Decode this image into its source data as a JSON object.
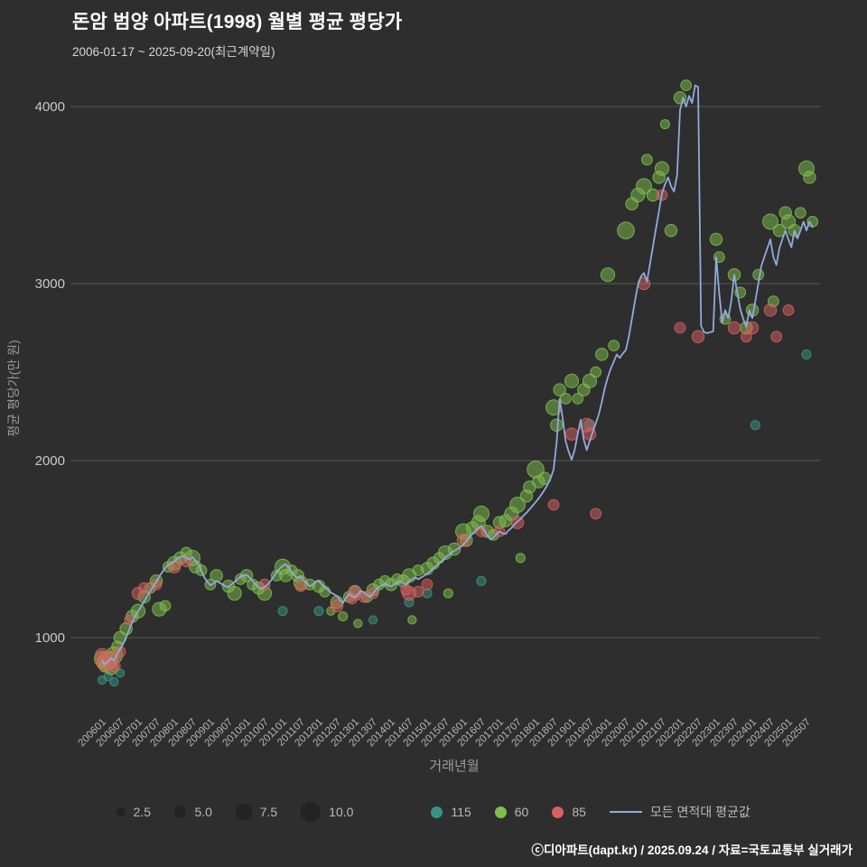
{
  "title": "돈암 범양 아파트(1998) 월별 평균 평당가",
  "subtitle": "2006-01-17 ~ 2025-09-20(최근계약일)",
  "footer": "ⓒ디아파트(dapt.kr) / 2025.09.24 / 자료=국토교통부 실거래가",
  "colors": {
    "background": "#2e2e2e",
    "grid": "#565656",
    "y_tick_text": "#c9c9c9",
    "x_tick_text": "#b5b5b5",
    "axis_title": "#9b9b9b",
    "line": "#93aadc",
    "size_legend_circle": "#232323"
  },
  "legend": {
    "sizes": [
      {
        "label": "2.5",
        "value": 2.5
      },
      {
        "label": "5.0",
        "value": 5
      },
      {
        "label": "7.5",
        "value": 7.5
      },
      {
        "label": "10.0",
        "value": 10
      }
    ],
    "line_label": "모든 면적대 평균값"
  },
  "chart_data": {
    "type": "bubble+line",
    "title": "돈암 범양 아파트(1998) 월별 평균 평당가",
    "xlabel": "거래년월",
    "ylabel": "평균 평당가(만 원)",
    "y_ticks": [
      1000,
      2000,
      3000,
      4000
    ],
    "ylim": [
      700,
      4250
    ],
    "x_start": "200601",
    "x_end": "202509",
    "x_ticks": [
      "200601",
      "200607",
      "200701",
      "200707",
      "200801",
      "200807",
      "200901",
      "200907",
      "201001",
      "201007",
      "201101",
      "201107",
      "201201",
      "201207",
      "201301",
      "201307",
      "201401",
      "201407",
      "201501",
      "201507",
      "201601",
      "201607",
      "201701",
      "201707",
      "201801",
      "201807",
      "201901",
      "201907",
      "202001",
      "202007",
      "202101",
      "202107",
      "202201",
      "202207",
      "202301",
      "202307",
      "202401",
      "202407",
      "202501",
      "202507"
    ],
    "bubble_series": [
      {
        "name": "115",
        "color": "#379484",
        "points": [
          [
            "200601",
            760,
            2.5
          ],
          [
            "200603",
            780,
            2.5
          ],
          [
            "200605",
            750,
            2.5
          ],
          [
            "200607",
            800,
            2.5
          ],
          [
            "201101",
            1150,
            3
          ],
          [
            "201201",
            1150,
            3
          ],
          [
            "201307",
            1100,
            2.5
          ],
          [
            "201407",
            1200,
            3
          ],
          [
            "201501",
            1250,
            3
          ],
          [
            "201607",
            1320,
            3
          ],
          [
            "201907",
            2200,
            4
          ],
          [
            "202402",
            2200,
            3
          ],
          [
            "202507",
            2600,
            3
          ]
        ]
      },
      {
        "name": "60",
        "color": "#7fbe4e",
        "points": [
          [
            "200601",
            880,
            7
          ],
          [
            "200601",
            855,
            4
          ],
          [
            "200602",
            840,
            5
          ],
          [
            "200603",
            870,
            9
          ],
          [
            "200604",
            830,
            6
          ],
          [
            "200605",
            900,
            8
          ],
          [
            "200606",
            950,
            4
          ],
          [
            "200607",
            1000,
            5
          ],
          [
            "200609",
            1050,
            5
          ],
          [
            "200611",
            1120,
            5
          ],
          [
            "200701",
            1150,
            6
          ],
          [
            "200703",
            1230,
            5
          ],
          [
            "200705",
            1280,
            4
          ],
          [
            "200707",
            1320,
            5
          ],
          [
            "200708",
            1160,
            6
          ],
          [
            "200710",
            1180,
            4
          ],
          [
            "200711",
            1400,
            4
          ],
          [
            "200801",
            1420,
            6
          ],
          [
            "200803",
            1450,
            5
          ],
          [
            "200805",
            1480,
            4
          ],
          [
            "200807",
            1450,
            7
          ],
          [
            "200808",
            1400,
            5
          ],
          [
            "200810",
            1380,
            4
          ],
          [
            "200901",
            1300,
            4
          ],
          [
            "200903",
            1350,
            5
          ],
          [
            "200907",
            1290,
            5
          ],
          [
            "200909",
            1250,
            6
          ],
          [
            "200911",
            1330,
            4
          ],
          [
            "201001",
            1350,
            5
          ],
          [
            "201003",
            1300,
            4
          ],
          [
            "201005",
            1280,
            5
          ],
          [
            "201007",
            1250,
            6
          ],
          [
            "201011",
            1350,
            4
          ],
          [
            "201101",
            1400,
            7
          ],
          [
            "201102",
            1350,
            5
          ],
          [
            "201104",
            1380,
            4
          ],
          [
            "201106",
            1350,
            5
          ],
          [
            "201107",
            1310,
            6
          ],
          [
            "201110",
            1300,
            4
          ],
          [
            "201201",
            1290,
            5
          ],
          [
            "201203",
            1260,
            4
          ],
          [
            "201205",
            1150,
            2.5
          ],
          [
            "201207",
            1200,
            5
          ],
          [
            "201209",
            1120,
            3
          ],
          [
            "201211",
            1230,
            4
          ],
          [
            "201301",
            1260,
            5
          ],
          [
            "201302",
            1080,
            2.5
          ],
          [
            "201305",
            1230,
            4
          ],
          [
            "201307",
            1270,
            5
          ],
          [
            "201309",
            1300,
            4
          ],
          [
            "201311",
            1320,
            4
          ],
          [
            "201401",
            1300,
            5
          ],
          [
            "201403",
            1330,
            4
          ],
          [
            "201405",
            1320,
            5
          ],
          [
            "201407",
            1350,
            6
          ],
          [
            "201408",
            1100,
            2.5
          ],
          [
            "201410",
            1380,
            4
          ],
          [
            "201501",
            1390,
            5
          ],
          [
            "201503",
            1420,
            5
          ],
          [
            "201505",
            1450,
            4
          ],
          [
            "201507",
            1480,
            6
          ],
          [
            "201508",
            1250,
            3
          ],
          [
            "201510",
            1500,
            5
          ],
          [
            "201601",
            1600,
            7
          ],
          [
            "201602",
            1550,
            5
          ],
          [
            "201604",
            1620,
            5
          ],
          [
            "201606",
            1650,
            6
          ],
          [
            "201607",
            1700,
            7
          ],
          [
            "201609",
            1600,
            5
          ],
          [
            "201611",
            1580,
            4
          ],
          [
            "201701",
            1650,
            5
          ],
          [
            "201703",
            1660,
            5
          ],
          [
            "201705",
            1700,
            6
          ],
          [
            "201707",
            1750,
            7
          ],
          [
            "201708",
            1450,
            3
          ],
          [
            "201710",
            1800,
            5
          ],
          [
            "201711",
            1850,
            5
          ],
          [
            "201801",
            1950,
            8
          ],
          [
            "201802",
            1880,
            5
          ],
          [
            "201804",
            1900,
            5
          ],
          [
            "201807",
            2300,
            7
          ],
          [
            "201808",
            2200,
            5
          ],
          [
            "201809",
            2400,
            5
          ],
          [
            "201811",
            2350,
            4
          ],
          [
            "201901",
            2450,
            6
          ],
          [
            "201903",
            2350,
            4
          ],
          [
            "201905",
            2400,
            5
          ],
          [
            "201907",
            2450,
            6
          ],
          [
            "201909",
            2500,
            4
          ],
          [
            "201911",
            2600,
            5
          ],
          [
            "202001",
            3050,
            6
          ],
          [
            "202003",
            2650,
            4
          ],
          [
            "202007",
            3300,
            8
          ],
          [
            "202009",
            3450,
            5
          ],
          [
            "202011",
            3500,
            6
          ],
          [
            "202101",
            3550,
            7
          ],
          [
            "202102",
            3700,
            4
          ],
          [
            "202104",
            3500,
            5
          ],
          [
            "202106",
            3600,
            5
          ],
          [
            "202107",
            3650,
            6
          ],
          [
            "202108",
            3900,
            3
          ],
          [
            "202110",
            3300,
            5
          ],
          [
            "202201",
            4050,
            5
          ],
          [
            "202203",
            4120,
            4
          ],
          [
            "202301",
            3250,
            5
          ],
          [
            "202302",
            3150,
            4
          ],
          [
            "202304",
            2800,
            4
          ],
          [
            "202307",
            3050,
            5
          ],
          [
            "202309",
            2950,
            4
          ],
          [
            "202311",
            2750,
            5
          ],
          [
            "202401",
            2850,
            5
          ],
          [
            "202403",
            3050,
            4
          ],
          [
            "202407",
            3350,
            7
          ],
          [
            "202408",
            2900,
            4
          ],
          [
            "202410",
            3300,
            5
          ],
          [
            "202412",
            3400,
            5
          ],
          [
            "202501",
            3350,
            6
          ],
          [
            "202503",
            3300,
            5
          ],
          [
            "202505",
            3400,
            4
          ],
          [
            "202507",
            3650,
            7
          ],
          [
            "202508",
            3600,
            5
          ],
          [
            "202509",
            3350,
            4
          ]
        ]
      },
      {
        "name": "85",
        "color": "#d86060",
        "points": [
          [
            "200601",
            900,
            6
          ],
          [
            "200602",
            860,
            8
          ],
          [
            "200604",
            880,
            7
          ],
          [
            "200605",
            840,
            5
          ],
          [
            "200607",
            920,
            4
          ],
          [
            "200610",
            1100,
            3
          ],
          [
            "200701",
            1250,
            5
          ],
          [
            "200703",
            1280,
            4
          ],
          [
            "200707",
            1300,
            4
          ],
          [
            "200801",
            1400,
            5
          ],
          [
            "200805",
            1430,
            4
          ],
          [
            "201007",
            1300,
            4
          ],
          [
            "201107",
            1290,
            4
          ],
          [
            "201207",
            1180,
            5
          ],
          [
            "201212",
            1220,
            4
          ],
          [
            "201301",
            1250,
            6
          ],
          [
            "201304",
            1230,
            4
          ],
          [
            "201307",
            1250,
            4
          ],
          [
            "201406",
            1270,
            4
          ],
          [
            "201407",
            1250,
            6
          ],
          [
            "201410",
            1260,
            4
          ],
          [
            "201501",
            1300,
            4
          ],
          [
            "201601",
            1550,
            5
          ],
          [
            "201607",
            1600,
            4
          ],
          [
            "201701",
            1600,
            4
          ],
          [
            "201707",
            1650,
            5
          ],
          [
            "201807",
            1750,
            4
          ],
          [
            "201901",
            2150,
            5
          ],
          [
            "201906",
            2200,
            6
          ],
          [
            "201907",
            2150,
            5
          ],
          [
            "201909",
            1700,
            4
          ],
          [
            "202101",
            3000,
            5
          ],
          [
            "202107",
            3500,
            4
          ],
          [
            "202201",
            2750,
            4
          ],
          [
            "202207",
            2700,
            5
          ],
          [
            "202307",
            2750,
            5
          ],
          [
            "202311",
            2700,
            4
          ],
          [
            "202401",
            2750,
            5
          ],
          [
            "202407",
            2850,
            5
          ],
          [
            "202409",
            2700,
            4
          ],
          [
            "202501",
            2850,
            4
          ]
        ]
      }
    ],
    "line_series": {
      "name": "모든 면적대 평균값",
      "start": "200601",
      "monthly_values": [
        870,
        850,
        865,
        885,
        870,
        905,
        935,
        965,
        1000,
        1045,
        1085,
        1120,
        1150,
        1175,
        1205,
        1235,
        1260,
        1290,
        1315,
        1345,
        1370,
        1395,
        1410,
        1420,
        1430,
        1445,
        1455,
        1460,
        1450,
        1440,
        1455,
        1435,
        1415,
        1375,
        1340,
        1315,
        1295,
        1305,
        1320,
        1310,
        1300,
        1290,
        1285,
        1300,
        1315,
        1330,
        1345,
        1350,
        1355,
        1340,
        1320,
        1300,
        1285,
        1275,
        1285,
        1300,
        1320,
        1345,
        1370,
        1390,
        1405,
        1415,
        1395,
        1370,
        1350,
        1335,
        1345,
        1325,
        1305,
        1290,
        1300,
        1315,
        1320,
        1300,
        1285,
        1270,
        1255,
        1245,
        1235,
        1215,
        1195,
        1225,
        1245,
        1235,
        1225,
        1245,
        1265,
        1255,
        1240,
        1230,
        1250,
        1270,
        1285,
        1295,
        1305,
        1295,
        1290,
        1300,
        1310,
        1320,
        1310,
        1300,
        1320,
        1330,
        1340,
        1330,
        1340,
        1350,
        1360,
        1375,
        1390,
        1405,
        1420,
        1435,
        1450,
        1465,
        1480,
        1490,
        1500,
        1510,
        1525,
        1545,
        1565,
        1585,
        1605,
        1620,
        1630,
        1605,
        1575,
        1555,
        1565,
        1585,
        1600,
        1590,
        1585,
        1605,
        1620,
        1640,
        1655,
        1670,
        1690,
        1705,
        1725,
        1745,
        1765,
        1785,
        1810,
        1835,
        1865,
        1900,
        1950,
        2100,
        2350,
        2240,
        2110,
        2050,
        2005,
        2060,
        2150,
        2230,
        2120,
        2060,
        2110,
        2160,
        2210,
        2260,
        2330,
        2410,
        2470,
        2520,
        2560,
        2600,
        2580,
        2605,
        2625,
        2700,
        2800,
        2900,
        2990,
        3040,
        3060,
        3010,
        3110,
        3210,
        3310,
        3410,
        3510,
        3560,
        3600,
        3550,
        3520,
        3610,
        3980,
        4050,
        4000,
        4060,
        4020,
        4120,
        4110,
        2760,
        2725,
        2720,
        2725,
        2730,
        3150,
        2950,
        2780,
        2850,
        2805,
        2900,
        3050,
        2950,
        2855,
        2800,
        2755,
        2850,
        2805,
        2900,
        3000,
        3100,
        3150,
        3200,
        3250,
        3150,
        3105,
        3200,
        3250,
        3300,
        3250,
        3205,
        3300,
        3255,
        3300,
        3350,
        3300,
        3350,
        3320
      ]
    }
  }
}
